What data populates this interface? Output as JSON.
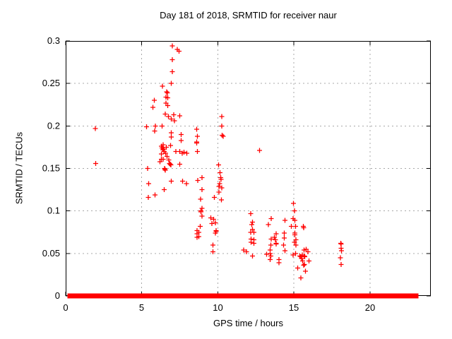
{
  "chart_data": {
    "type": "scatter",
    "title": "Day 181 of 2018, SRMTID for receiver naur",
    "xlabel": "GPS time / hours",
    "ylabel": "SRMTID / TECUs",
    "xlim": [
      0,
      24
    ],
    "ylim": [
      0,
      0.3
    ],
    "x_tick_values": [
      0,
      5,
      10,
      15,
      20
    ],
    "x_tick_labels": [
      "0",
      "5",
      "10",
      "15",
      "20"
    ],
    "y_tick_values": [
      0,
      0.05,
      0.1,
      0.15,
      0.2,
      0.25,
      0.3
    ],
    "y_tick_labels": [
      "0",
      "0.05",
      "0.1",
      "0.15",
      "0.2",
      "0.25",
      "0.3"
    ],
    "grid": {
      "x_values": [
        5,
        10,
        15,
        20
      ],
      "y_values": [
        0.05,
        0.1,
        0.15,
        0.2,
        0.25
      ],
      "color": "#a8a8a8",
      "style": "dashed"
    },
    "legend": "none",
    "marker": "plus",
    "marker_color": "#ff0000",
    "border_color": "#000000",
    "series": [
      {
        "name": "SRMTID",
        "points": [
          [
            1.96,
            0.197
          ],
          [
            1.98,
            0.156
          ],
          [
            5.31,
            0.199
          ],
          [
            5.39,
            0.15
          ],
          [
            5.43,
            0.116
          ],
          [
            5.46,
            0.132
          ],
          [
            5.74,
            0.222
          ],
          [
            5.82,
            0.23
          ],
          [
            5.85,
            0.194
          ],
          [
            5.88,
            0.119
          ],
          [
            5.9,
            0.2
          ],
          [
            6.2,
            0.158
          ],
          [
            6.28,
            0.176
          ],
          [
            6.28,
            0.167
          ],
          [
            6.3,
            0.161
          ],
          [
            6.33,
            0.2
          ],
          [
            6.33,
            0.174
          ],
          [
            6.36,
            0.247
          ],
          [
            6.38,
            0.172
          ],
          [
            6.41,
            0.178
          ],
          [
            6.41,
            0.161
          ],
          [
            6.44,
            0.173
          ],
          [
            6.47,
            0.125
          ],
          [
            6.48,
            0.17
          ],
          [
            6.5,
            0.15
          ],
          [
            6.52,
            0.149
          ],
          [
            6.54,
            0.148
          ],
          [
            6.55,
            0.214
          ],
          [
            6.56,
            0.168
          ],
          [
            6.59,
            0.234
          ],
          [
            6.59,
            0.227
          ],
          [
            6.62,
            0.175
          ],
          [
            6.64,
            0.24
          ],
          [
            6.68,
            0.239
          ],
          [
            6.67,
            0.164
          ],
          [
            6.7,
            0.233
          ],
          [
            6.7,
            0.224
          ],
          [
            6.75,
            0.211
          ],
          [
            6.78,
            0.16
          ],
          [
            6.82,
            0.156
          ],
          [
            6.87,
            0.155
          ],
          [
            6.9,
            0.177
          ],
          [
            6.92,
            0.154
          ],
          [
            6.93,
            0.208
          ],
          [
            6.93,
            0.192
          ],
          [
            6.93,
            0.187
          ],
          [
            6.95,
            0.25
          ],
          [
            6.95,
            0.135
          ],
          [
            7.01,
            0.294
          ],
          [
            7.01,
            0.278
          ],
          [
            7.01,
            0.264
          ],
          [
            7.1,
            0.213
          ],
          [
            7.15,
            0.206
          ],
          [
            7.24,
            0.17
          ],
          [
            7.33,
            0.29
          ],
          [
            7.44,
            0.288
          ],
          [
            7.49,
            0.212
          ],
          [
            7.49,
            0.17
          ],
          [
            7.49,
            0.155
          ],
          [
            7.6,
            0.19
          ],
          [
            7.6,
            0.183
          ],
          [
            7.67,
            0.168
          ],
          [
            7.69,
            0.135
          ],
          [
            7.78,
            0.169
          ],
          [
            7.94,
            0.132
          ],
          [
            7.95,
            0.168
          ],
          [
            8.6,
            0.196
          ],
          [
            8.6,
            0.181
          ],
          [
            8.62,
            0.18
          ],
          [
            8.64,
            0.077
          ],
          [
            8.64,
            0.073
          ],
          [
            8.64,
            0.069
          ],
          [
            8.65,
            0.188
          ],
          [
            8.65,
            0.17
          ],
          [
            8.68,
            0.136
          ],
          [
            8.76,
            0.075
          ],
          [
            8.76,
            0.07
          ],
          [
            8.84,
            0.082
          ],
          [
            8.87,
            0.114
          ],
          [
            8.88,
            0.099
          ],
          [
            8.9,
            0.1
          ],
          [
            8.95,
            0.139
          ],
          [
            8.95,
            0.125
          ],
          [
            8.95,
            0.103
          ],
          [
            8.95,
            0.094
          ],
          [
            9.53,
            0.092
          ],
          [
            9.61,
            0.085
          ],
          [
            9.69,
            0.06
          ],
          [
            9.69,
            0.052
          ],
          [
            9.72,
            0.09
          ],
          [
            9.77,
            0.116
          ],
          [
            9.84,
            0.086
          ],
          [
            9.84,
            0.074
          ],
          [
            9.88,
            0.076
          ],
          [
            9.89,
            0.077
          ],
          [
            10.04,
            0.154
          ],
          [
            10.07,
            0.122
          ],
          [
            10.08,
            0.129
          ],
          [
            10.11,
            0.132
          ],
          [
            10.15,
            0.145
          ],
          [
            10.2,
            0.139
          ],
          [
            10.21,
            0.137
          ],
          [
            10.23,
            0.113
          ],
          [
            10.27,
            0.211
          ],
          [
            10.27,
            0.2
          ],
          [
            10.27,
            0.127
          ],
          [
            10.29,
            0.189
          ],
          [
            10.35,
            0.188
          ],
          [
            11.7,
            0.054
          ],
          [
            11.88,
            0.052
          ],
          [
            12.16,
            0.097
          ],
          [
            12.16,
            0.075
          ],
          [
            12.19,
            0.067
          ],
          [
            12.19,
            0.063
          ],
          [
            12.24,
            0.084
          ],
          [
            12.29,
            0.087
          ],
          [
            12.29,
            0.078
          ],
          [
            12.29,
            0.047
          ],
          [
            12.36,
            0.075
          ],
          [
            12.36,
            0.066
          ],
          [
            12.36,
            0.062
          ],
          [
            12.75,
            0.171
          ],
          [
            13.21,
            0.049
          ],
          [
            13.32,
            0.084
          ],
          [
            13.43,
            0.054
          ],
          [
            13.43,
            0.05
          ],
          [
            13.43,
            0.043
          ],
          [
            13.48,
            0.06
          ],
          [
            13.48,
            0.047
          ],
          [
            13.52,
            0.091
          ],
          [
            13.52,
            0.067
          ],
          [
            13.71,
            0.069
          ],
          [
            13.79,
            0.066
          ],
          [
            13.83,
            0.073
          ],
          [
            13.83,
            0.062
          ],
          [
            13.84,
            0.061
          ],
          [
            14.02,
            0.043
          ],
          [
            14.02,
            0.039
          ],
          [
            14.33,
            0.06
          ],
          [
            14.36,
            0.074
          ],
          [
            14.36,
            0.068
          ],
          [
            14.41,
            0.089
          ],
          [
            14.41,
            0.053
          ],
          [
            14.84,
            0.082
          ],
          [
            14.95,
            0.091
          ],
          [
            14.95,
            0.048
          ],
          [
            14.98,
            0.109
          ],
          [
            15.03,
            0.1
          ],
          [
            15.03,
            0.063
          ],
          [
            15.07,
            0.089
          ],
          [
            15.07,
            0.074
          ],
          [
            15.07,
            0.072
          ],
          [
            15.1,
            0.082
          ],
          [
            15.1,
            0.05
          ],
          [
            15.13,
            0.066
          ],
          [
            15.13,
            0.06
          ],
          [
            15.26,
            0.033
          ],
          [
            15.4,
            0.047
          ],
          [
            15.45,
            0.046
          ],
          [
            15.46,
            0.021
          ],
          [
            15.5,
            0.044
          ],
          [
            15.55,
            0.048
          ],
          [
            15.57,
            0.041
          ],
          [
            15.62,
            0.082
          ],
          [
            15.64,
            0.08
          ],
          [
            15.64,
            0.036
          ],
          [
            15.66,
            0.054
          ],
          [
            15.68,
            0.047
          ],
          [
            15.68,
            0.037
          ],
          [
            15.72,
            0.046
          ],
          [
            15.76,
            0.029
          ],
          [
            15.8,
            0.055
          ],
          [
            15.92,
            0.052
          ],
          [
            16.0,
            0.041
          ],
          [
            18.06,
            0.045
          ],
          [
            18.08,
            0.062
          ],
          [
            18.1,
            0.061
          ],
          [
            18.1,
            0.056
          ],
          [
            18.1,
            0.037
          ],
          [
            18.13,
            0.053
          ]
        ]
      }
    ],
    "zero_band_segments": [
      [
        0.25,
        0.46
      ],
      [
        0.57,
        1.31
      ],
      [
        1.47,
        4.15
      ],
      [
        4.35,
        6.95
      ],
      [
        7.15,
        8.63
      ],
      [
        8.74,
        8.94
      ],
      [
        9.05,
        9.72
      ],
      [
        9.87,
        10.24
      ],
      [
        10.34,
        12.5
      ],
      [
        12.62,
        19.18
      ],
      [
        19.35,
        20.42
      ],
      [
        20.65,
        20.84
      ],
      [
        20.93,
        21.35
      ],
      [
        21.46,
        21.58
      ],
      [
        21.7,
        22.2
      ],
      [
        22.44,
        22.7
      ],
      [
        22.79,
        22.93
      ],
      [
        22.98,
        23.06
      ]
    ]
  }
}
